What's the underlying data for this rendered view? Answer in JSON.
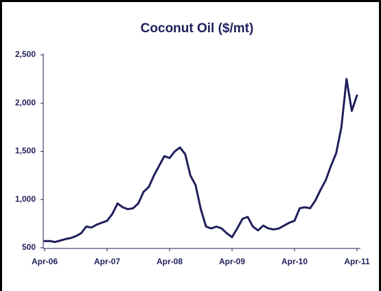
{
  "chart_data": {
    "type": "line",
    "title": "Coconut Oil ($/mt)",
    "categories": [
      "Apr-06",
      null,
      null,
      null,
      null,
      null,
      null,
      null,
      null,
      null,
      null,
      null,
      "Apr-07",
      null,
      null,
      null,
      null,
      null,
      null,
      null,
      null,
      null,
      null,
      null,
      "Apr-08",
      null,
      null,
      null,
      null,
      null,
      null,
      null,
      null,
      null,
      null,
      null,
      "Apr-09",
      null,
      null,
      null,
      null,
      null,
      null,
      null,
      null,
      null,
      null,
      null,
      "Apr-10",
      null,
      null,
      null,
      null,
      null,
      null,
      null,
      null,
      null,
      null,
      null,
      "Apr-11"
    ],
    "series": [
      {
        "name": "Coconut Oil",
        "color": "#1f1f5c",
        "values": [
          570,
          570,
          560,
          575,
          590,
          600,
          620,
          650,
          720,
          710,
          740,
          760,
          780,
          850,
          960,
          920,
          900,
          910,
          960,
          1080,
          1130,
          1250,
          1350,
          1450,
          1430,
          1500,
          1540,
          1470,
          1250,
          1150,
          900,
          720,
          700,
          720,
          700,
          650,
          610,
          700,
          800,
          820,
          720,
          680,
          730,
          700,
          690,
          700,
          730,
          760,
          780,
          910,
          920,
          910,
          990,
          1100,
          1200,
          1350,
          1480,
          1750,
          2250,
          1920,
          2080
        ]
      }
    ],
    "ylim": [
      500,
      2500
    ],
    "yticks": [
      500,
      {
        "value": 1000,
        "label": "1,000"
      },
      {
        "value": 1500,
        "label": "1,500"
      },
      {
        "value": 2000,
        "label": "2,000"
      },
      {
        "value": 2500,
        "label": "2,500"
      }
    ]
  }
}
